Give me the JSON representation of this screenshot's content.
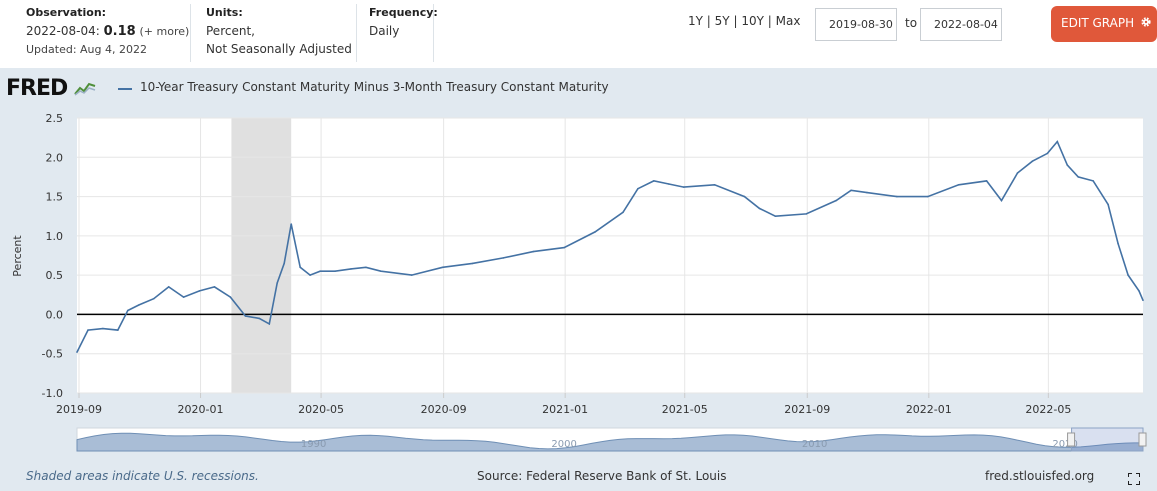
{
  "header": {
    "observation_label": "Observation:",
    "observation_date": "2022-08-04:",
    "observation_value": "0.18",
    "observation_more": "(+ more)",
    "updated": "Updated: Aug 4, 2022",
    "units_label": "Units:",
    "units_line1": "Percent,",
    "units_line2": "Not Seasonally Adjusted",
    "frequency_label": "Frequency:",
    "frequency_value": "Daily",
    "range_1y": "1Y",
    "range_5y": "5Y",
    "range_10y": "10Y",
    "range_max": "Max",
    "range_sep": "|",
    "start_date": "2019-08-30",
    "to_label": "to",
    "end_date": "2022-08-04",
    "edit_button": "EDIT GRAPH",
    "edit_icon": "gear-icon"
  },
  "logo_text": "FRED",
  "footer": {
    "recession_note": "Shaded areas indicate U.S. recessions.",
    "source": "Source: Federal Reserve Bank of St. Louis",
    "site": "fred.stlouisfed.org",
    "fullscreen_icon": "fullscreen-icon"
  },
  "colors": {
    "line": "#4472a4",
    "accent": "#e0583a",
    "recession": "#e0e0e0",
    "background": "#e1e9f0"
  },
  "chart_data": {
    "type": "line",
    "title": "10-Year Treasury Constant Maturity Minus 3-Month Treasury Constant Maturity",
    "ylabel": "Percent",
    "ylim": [
      -1.0,
      2.5
    ],
    "yticks": [
      "2.5",
      "2.0",
      "1.5",
      "1.0",
      "0.5",
      "0.0",
      "-0.5",
      "-1.0"
    ],
    "xticks": [
      "2019-09",
      "2020-01",
      "2020-05",
      "2020-09",
      "2021-01",
      "2021-05",
      "2021-09",
      "2022-01",
      "2022-05"
    ],
    "navigator_labels": [
      "1990",
      "2000",
      "2010",
      "2020"
    ],
    "grid": true,
    "legend": "top-left",
    "recession": [
      "2020-02",
      "2020-04"
    ],
    "series": [
      {
        "name": "10-Year Treasury Constant Maturity Minus 3-Month Treasury Constant Maturity",
        "x": [
          "2019-08-30",
          "2019-09-10",
          "2019-09-25",
          "2019-10-10",
          "2019-10-20",
          "2019-10-31",
          "2019-11-15",
          "2019-11-30",
          "2019-12-15",
          "2019-12-31",
          "2020-01-15",
          "2020-01-31",
          "2020-02-15",
          "2020-02-29",
          "2020-03-10",
          "2020-03-18",
          "2020-03-25",
          "2020-04-01",
          "2020-04-10",
          "2020-04-20",
          "2020-04-30",
          "2020-05-15",
          "2020-05-31",
          "2020-06-15",
          "2020-06-30",
          "2020-07-31",
          "2020-08-31",
          "2020-09-30",
          "2020-10-31",
          "2020-11-30",
          "2020-12-31",
          "2021-01-31",
          "2021-02-28",
          "2021-03-15",
          "2021-03-31",
          "2021-04-15",
          "2021-04-30",
          "2021-05-31",
          "2021-06-30",
          "2021-07-15",
          "2021-07-31",
          "2021-08-31",
          "2021-09-30",
          "2021-10-15",
          "2021-10-31",
          "2021-11-30",
          "2021-12-31",
          "2022-01-31",
          "2022-02-28",
          "2022-03-15",
          "2022-03-31",
          "2022-04-15",
          "2022-04-30",
          "2022-05-10",
          "2022-05-20",
          "2022-05-31",
          "2022-06-15",
          "2022-06-30",
          "2022-07-10",
          "2022-07-20",
          "2022-07-31",
          "2022-08-04"
        ],
        "values": [
          -0.48,
          -0.2,
          -0.18,
          -0.2,
          0.05,
          0.12,
          0.2,
          0.35,
          0.22,
          0.3,
          0.35,
          0.22,
          -0.02,
          -0.05,
          -0.12,
          0.4,
          0.65,
          1.15,
          0.6,
          0.5,
          0.55,
          0.55,
          0.58,
          0.6,
          0.55,
          0.5,
          0.6,
          0.65,
          0.72,
          0.8,
          0.85,
          1.05,
          1.3,
          1.6,
          1.7,
          1.66,
          1.62,
          1.65,
          1.5,
          1.35,
          1.25,
          1.28,
          1.45,
          1.58,
          1.55,
          1.5,
          1.5,
          1.65,
          1.7,
          1.45,
          1.8,
          1.95,
          2.05,
          2.2,
          1.9,
          1.75,
          1.7,
          1.4,
          0.9,
          0.5,
          0.3,
          0.18
        ]
      }
    ]
  }
}
